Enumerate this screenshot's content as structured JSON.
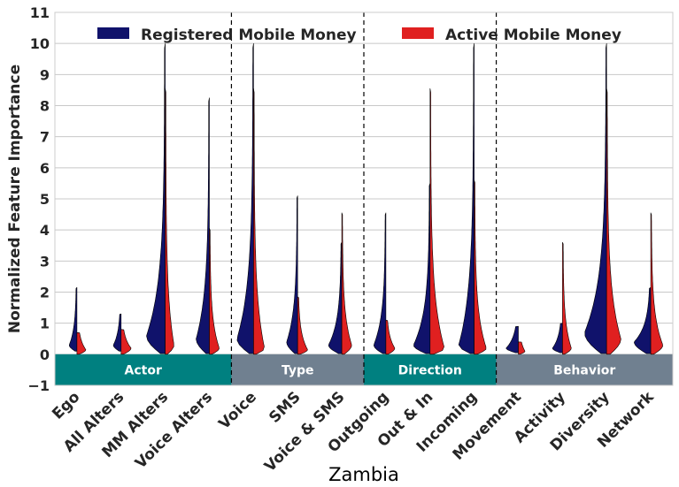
{
  "chart_data": {
    "type": "violin",
    "title": "Zambia",
    "ylabel": "Normalized Feature Importance",
    "xlabel": "",
    "ylim": [
      -1,
      11
    ],
    "yticks": [
      -1,
      0,
      1,
      2,
      3,
      4,
      5,
      6,
      7,
      8,
      9,
      10,
      11
    ],
    "ytick_labels": [
      "−1",
      "0",
      "1",
      "2",
      "3",
      "4",
      "5",
      "6",
      "7",
      "8",
      "9",
      "10",
      "11"
    ],
    "grid": true,
    "legend_position": "top",
    "categories": [
      "Ego",
      "All Alters",
      "MM Alters",
      "Voice Alters",
      "Voice",
      "SMS",
      "Voice & SMS",
      "Outgoing",
      "Out & In",
      "Incoming",
      "Movement",
      "Activity",
      "Diversity",
      "Network"
    ],
    "series": [
      {
        "name": "Registered Mobile Money",
        "color": "#10126b",
        "side": "left",
        "max": [
          2.15,
          1.3,
          10.0,
          8.25,
          10.0,
          5.1,
          3.6,
          4.55,
          5.5,
          10.0,
          0.9,
          1.0,
          10.0,
          2.15
        ],
        "min": [
          0.1,
          0.1,
          0.02,
          0.02,
          0.02,
          0.02,
          0.02,
          0.02,
          0.02,
          0.02,
          0.05,
          0.05,
          0.02,
          0.02
        ],
        "peak": [
          0.3,
          0.3,
          0.6,
          0.5,
          0.5,
          0.4,
          0.3,
          0.3,
          0.3,
          0.3,
          0.2,
          0.2,
          0.7,
          0.4
        ],
        "base_half_width": [
          0.35,
          0.35,
          0.85,
          0.6,
          0.75,
          0.5,
          0.6,
          0.55,
          0.75,
          0.7,
          0.55,
          0.45,
          1.0,
          0.75
        ]
      },
      {
        "name": "Active Mobile Money",
        "color": "#e02020",
        "side": "right",
        "max": [
          0.7,
          0.8,
          8.55,
          4.05,
          8.55,
          1.85,
          4.55,
          1.1,
          8.55,
          5.6,
          0.4,
          3.6,
          8.55,
          4.55
        ],
        "min": [
          0.0,
          0.0,
          0.0,
          0.0,
          0.0,
          0.0,
          0.0,
          0.0,
          0.0,
          0.0,
          0.0,
          0.0,
          0.0,
          0.0
        ],
        "peak": [
          0.15,
          0.2,
          0.3,
          0.2,
          0.2,
          0.15,
          0.3,
          0.2,
          0.2,
          0.2,
          0.1,
          0.2,
          0.5,
          0.3
        ],
        "base_half_width": [
          0.4,
          0.45,
          0.4,
          0.45,
          0.5,
          0.45,
          0.45,
          0.4,
          0.65,
          0.55,
          0.3,
          0.4,
          0.65,
          0.55
        ]
      }
    ],
    "groups": [
      {
        "label": "Actor",
        "start": 0,
        "end": 3,
        "color": "#008080"
      },
      {
        "label": "Type",
        "start": 4,
        "end": 6,
        "color": "#708090"
      },
      {
        "label": "Direction",
        "start": 7,
        "end": 9,
        "color": "#008080"
      },
      {
        "label": "Behavior",
        "start": 10,
        "end": 13,
        "color": "#708090"
      }
    ],
    "separators_after_index": [
      3,
      6,
      9
    ]
  }
}
